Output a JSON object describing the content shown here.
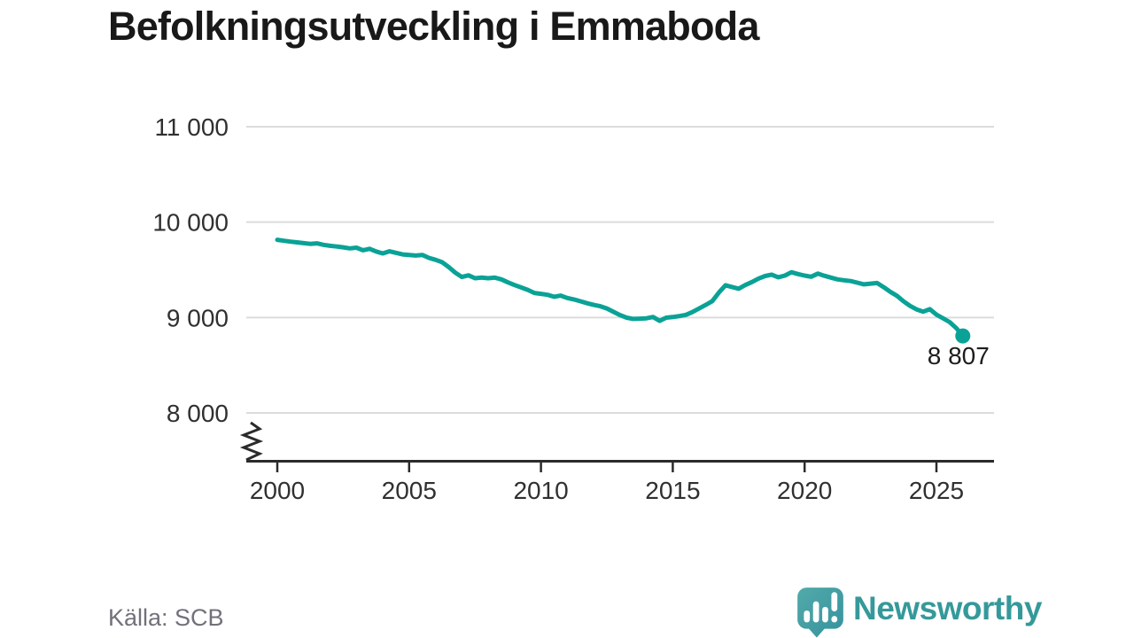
{
  "header": {
    "title": "Befolkningsutveckling i Emmaboda"
  },
  "footer": {
    "source_label": "Källa: SCB",
    "brand_name": "Newsworthy"
  },
  "colors": {
    "line": "#0aa296",
    "grid": "#dcdcdc",
    "axis": "#2b2b2b",
    "tick_text": "#303030",
    "end_label_text": "#1d1d1d",
    "title_text": "#191919",
    "source_text": "#71717b",
    "brand_text": "#35999a",
    "logo_gradient_start": "#52aaa9",
    "logo_gradient_end": "#35929e"
  },
  "chart_data": {
    "type": "line",
    "title": "Befolkningsutveckling i Emmaboda",
    "xlabel": "",
    "ylabel": "",
    "x_ticks": [
      2000,
      2005,
      2010,
      2015,
      2020,
      2025
    ],
    "y_ticks": [
      {
        "value": 11000,
        "label": "11 000"
      },
      {
        "value": 10000,
        "label": "10 000"
      },
      {
        "value": 9000,
        "label": "9 000"
      },
      {
        "value": 8000,
        "label": "8 000"
      }
    ],
    "ylim": [
      8000,
      11000
    ],
    "axis_break": true,
    "grid": "horizontal",
    "legend": "none",
    "end_label": "8 807",
    "last_value": 8807,
    "series": [
      {
        "name": "Befolkning",
        "points": [
          [
            2000.0,
            9815
          ],
          [
            2000.25,
            9805
          ],
          [
            2000.5,
            9795
          ],
          [
            2000.75,
            9788
          ],
          [
            2001.0,
            9780
          ],
          [
            2001.25,
            9772
          ],
          [
            2001.5,
            9778
          ],
          [
            2001.75,
            9762
          ],
          [
            2002.0,
            9752
          ],
          [
            2002.25,
            9744
          ],
          [
            2002.5,
            9736
          ],
          [
            2002.75,
            9725
          ],
          [
            2003.0,
            9732
          ],
          [
            2003.25,
            9705
          ],
          [
            2003.5,
            9720
          ],
          [
            2003.75,
            9692
          ],
          [
            2004.0,
            9672
          ],
          [
            2004.25,
            9694
          ],
          [
            2004.5,
            9678
          ],
          [
            2004.75,
            9662
          ],
          [
            2005.0,
            9655
          ],
          [
            2005.25,
            9650
          ],
          [
            2005.5,
            9656
          ],
          [
            2005.75,
            9625
          ],
          [
            2006.0,
            9605
          ],
          [
            2006.25,
            9580
          ],
          [
            2006.5,
            9530
          ],
          [
            2006.75,
            9470
          ],
          [
            2007.0,
            9425
          ],
          [
            2007.25,
            9442
          ],
          [
            2007.5,
            9412
          ],
          [
            2007.75,
            9418
          ],
          [
            2008.0,
            9412
          ],
          [
            2008.25,
            9418
          ],
          [
            2008.5,
            9400
          ],
          [
            2008.75,
            9368
          ],
          [
            2009.0,
            9340
          ],
          [
            2009.25,
            9315
          ],
          [
            2009.5,
            9290
          ],
          [
            2009.75,
            9258
          ],
          [
            2010.0,
            9248
          ],
          [
            2010.25,
            9238
          ],
          [
            2010.5,
            9218
          ],
          [
            2010.75,
            9230
          ],
          [
            2011.0,
            9205
          ],
          [
            2011.25,
            9190
          ],
          [
            2011.5,
            9170
          ],
          [
            2011.75,
            9150
          ],
          [
            2012.0,
            9132
          ],
          [
            2012.25,
            9118
          ],
          [
            2012.5,
            9095
          ],
          [
            2012.75,
            9060
          ],
          [
            2013.0,
            9025
          ],
          [
            2013.25,
            8998
          ],
          [
            2013.5,
            8985
          ],
          [
            2013.75,
            8988
          ],
          [
            2014.0,
            8992
          ],
          [
            2014.25,
            9006
          ],
          [
            2014.5,
            8965
          ],
          [
            2014.75,
            8998
          ],
          [
            2015.0,
            9005
          ],
          [
            2015.25,
            9015
          ],
          [
            2015.5,
            9028
          ],
          [
            2015.75,
            9058
          ],
          [
            2016.0,
            9095
          ],
          [
            2016.25,
            9132
          ],
          [
            2016.5,
            9172
          ],
          [
            2016.75,
            9262
          ],
          [
            2017.0,
            9338
          ],
          [
            2017.25,
            9320
          ],
          [
            2017.5,
            9302
          ],
          [
            2017.75,
            9340
          ],
          [
            2018.0,
            9372
          ],
          [
            2018.25,
            9408
          ],
          [
            2018.5,
            9435
          ],
          [
            2018.75,
            9450
          ],
          [
            2019.0,
            9422
          ],
          [
            2019.25,
            9440
          ],
          [
            2019.5,
            9475
          ],
          [
            2019.75,
            9455
          ],
          [
            2020.0,
            9440
          ],
          [
            2020.25,
            9428
          ],
          [
            2020.5,
            9460
          ],
          [
            2020.75,
            9438
          ],
          [
            2021.0,
            9418
          ],
          [
            2021.25,
            9400
          ],
          [
            2021.5,
            9390
          ],
          [
            2021.75,
            9382
          ],
          [
            2022.0,
            9365
          ],
          [
            2022.25,
            9348
          ],
          [
            2022.5,
            9355
          ],
          [
            2022.75,
            9362
          ],
          [
            2023.0,
            9318
          ],
          [
            2023.25,
            9270
          ],
          [
            2023.5,
            9228
          ],
          [
            2023.75,
            9170
          ],
          [
            2024.0,
            9122
          ],
          [
            2024.25,
            9085
          ],
          [
            2024.5,
            9062
          ],
          [
            2024.75,
            9088
          ],
          [
            2025.0,
            9030
          ],
          [
            2025.25,
            8992
          ],
          [
            2025.5,
            8952
          ],
          [
            2025.75,
            8890
          ],
          [
            2026.0,
            8807
          ]
        ]
      }
    ]
  }
}
